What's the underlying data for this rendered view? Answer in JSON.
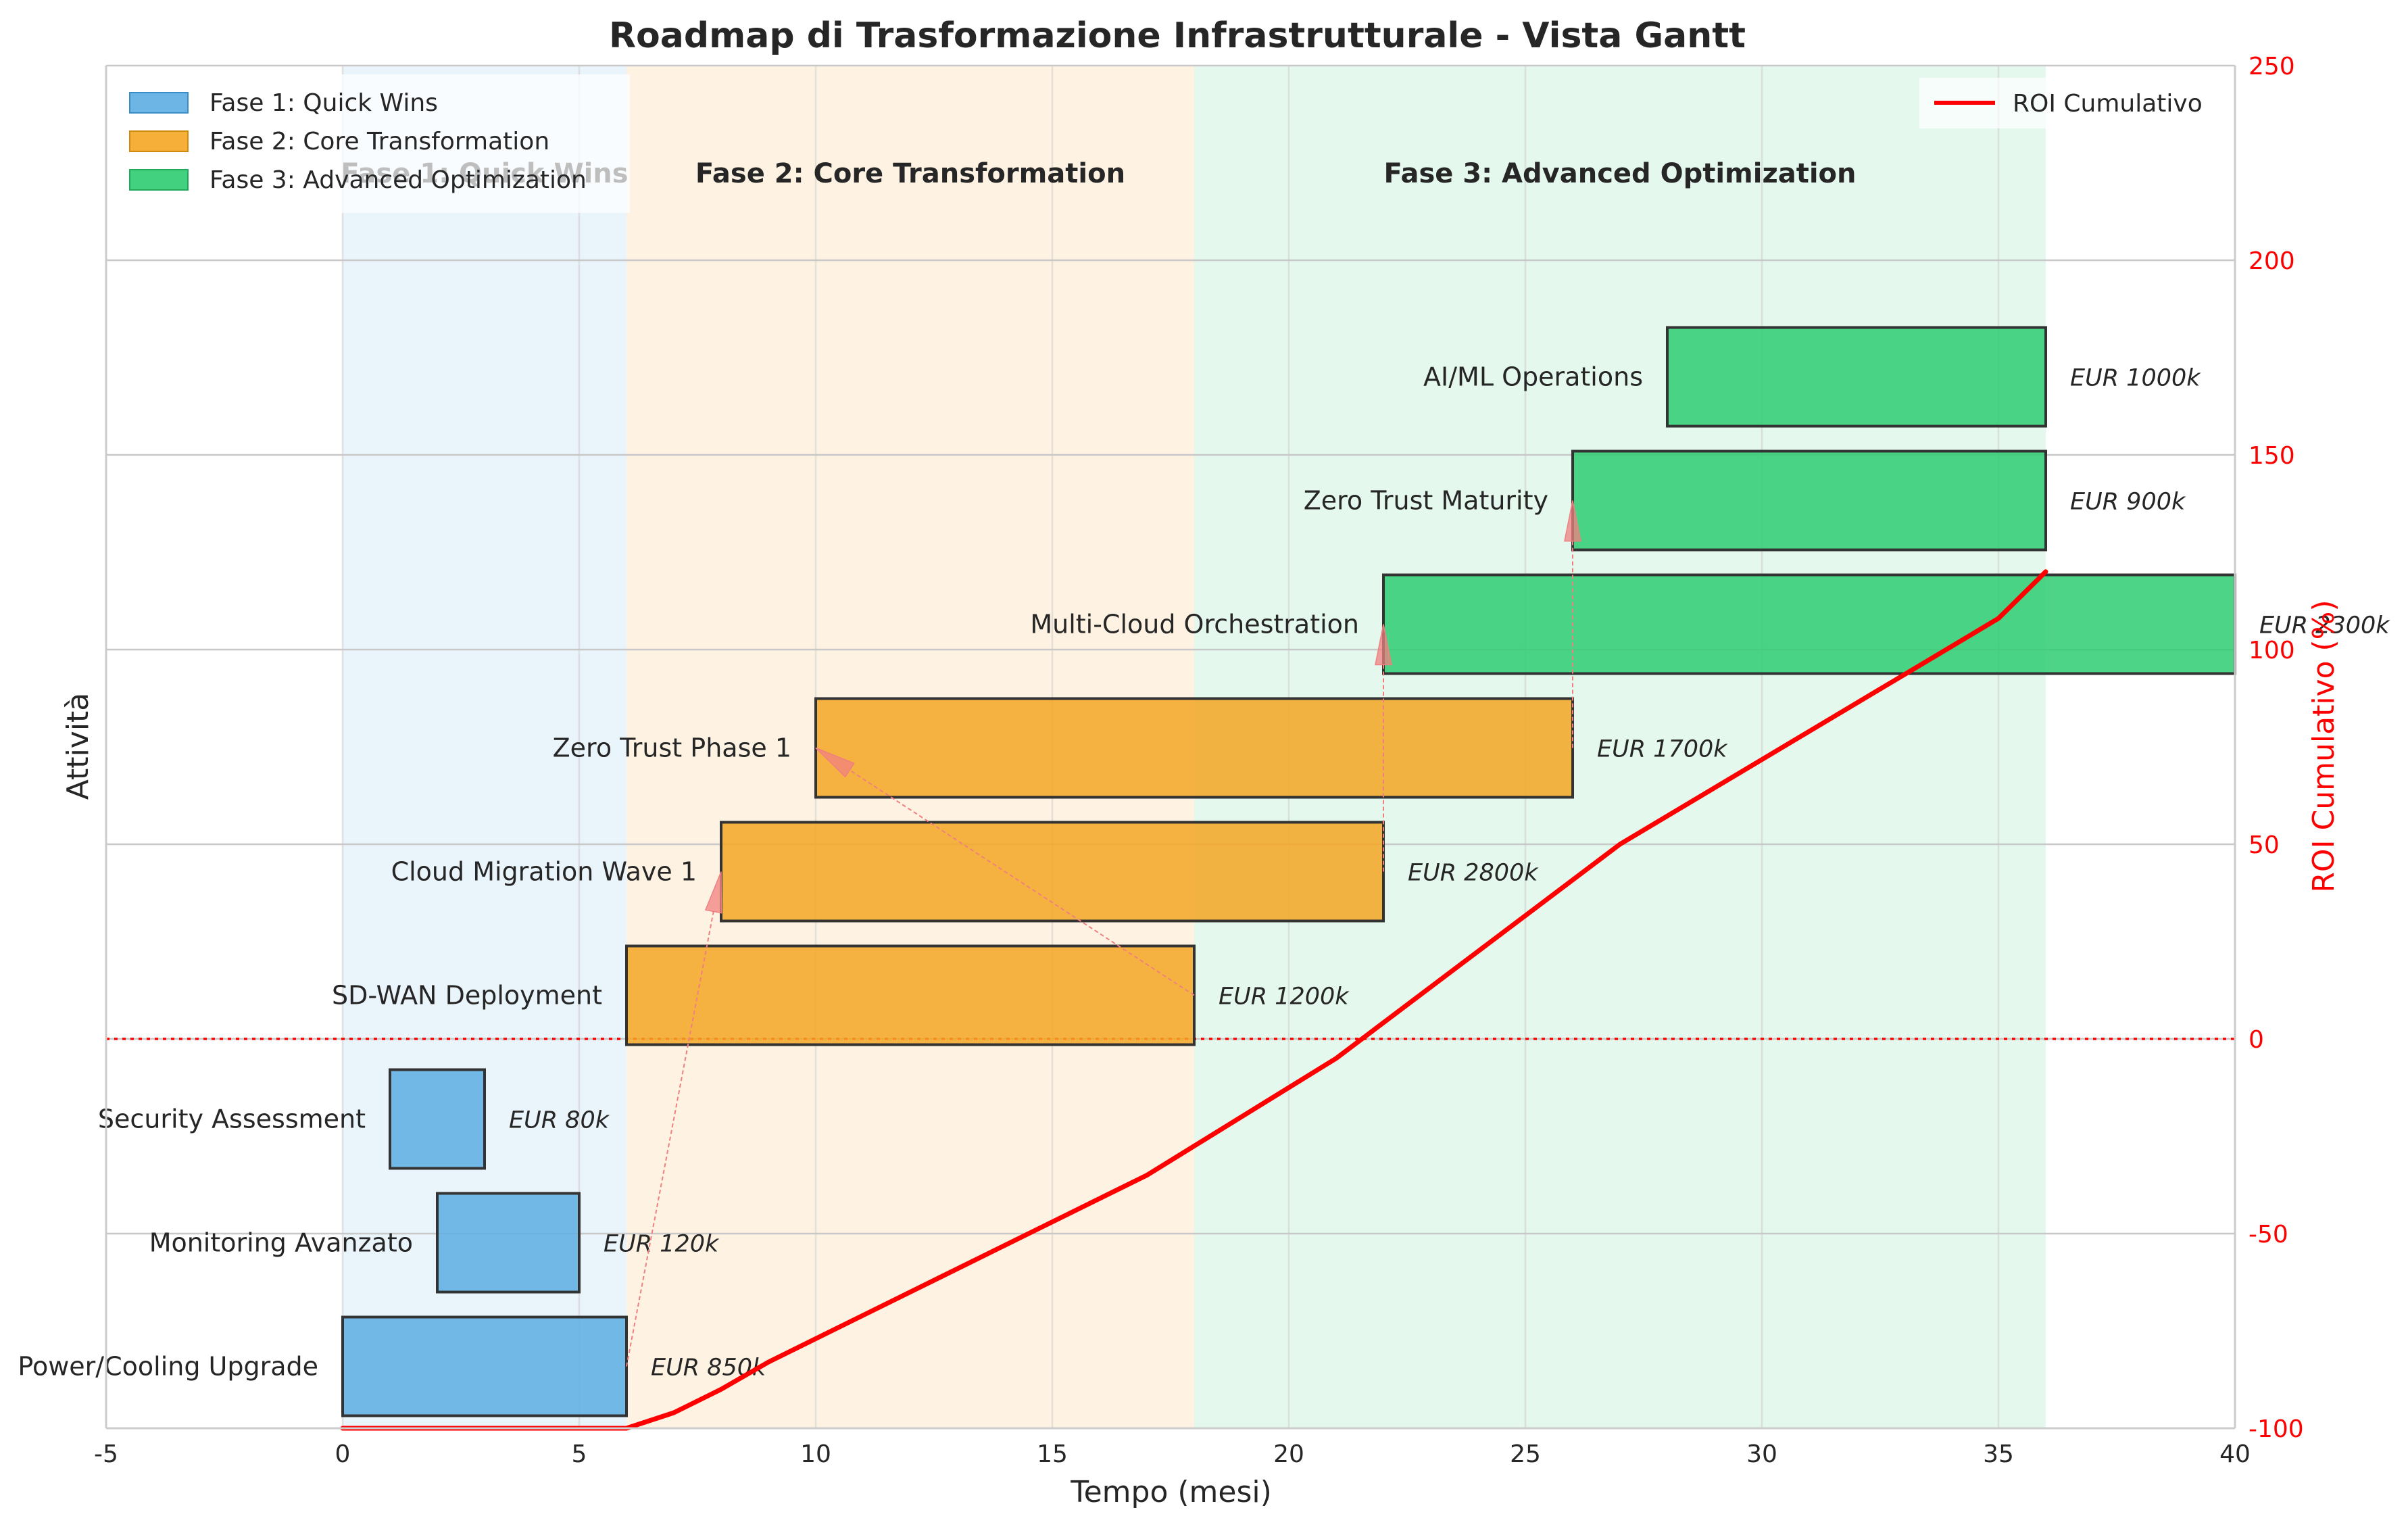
{
  "chart_data": {
    "type": "gantt",
    "title": "Roadmap di Trasformazione Infrastrutturale - Vista Gantt",
    "xlabel": "Tempo (mesi)",
    "ylabel": "Attività",
    "y2label": "ROI Cumulativo (%)",
    "xlim": [
      -5,
      40
    ],
    "xticks": [
      -5,
      0,
      5,
      10,
      15,
      20,
      25,
      30,
      35,
      40
    ],
    "y2lim": [
      -100,
      250
    ],
    "y2ticks": [
      -100,
      -50,
      0,
      50,
      100,
      150,
      200,
      250
    ],
    "grid": true,
    "legend_left_position": "top-left",
    "legend_right_position": "top-right",
    "colors": {
      "phase1": "#5DADE2",
      "phase2": "#F5A623",
      "phase3": "#2ECC71",
      "roi": "#FF0000",
      "dependency": "#F08080",
      "axis_red": "#FF0000"
    },
    "phases": [
      {
        "id": "phase1",
        "label": "Fase 1: Quick Wins",
        "start": 0,
        "end": 6
      },
      {
        "id": "phase2",
        "label": "Fase 2: Core Transformation",
        "start": 6,
        "end": 18
      },
      {
        "id": "phase3",
        "label": "Fase 3: Advanced Optimization",
        "start": 18,
        "end": 36
      }
    ],
    "tasks": [
      {
        "name": "Power/Cooling Upgrade",
        "start": 0,
        "end": 6,
        "phase": "phase1",
        "cost": "EUR 850k"
      },
      {
        "name": "Monitoring Avanzato",
        "start": 2,
        "end": 5,
        "phase": "phase1",
        "cost": "EUR 120k"
      },
      {
        "name": "Security Assessment",
        "start": 1,
        "end": 3,
        "phase": "phase1",
        "cost": "EUR 80k"
      },
      {
        "name": "SD-WAN Deployment",
        "start": 6,
        "end": 18,
        "phase": "phase2",
        "cost": "EUR 1200k"
      },
      {
        "name": "Cloud Migration Wave 1",
        "start": 8,
        "end": 22,
        "phase": "phase2",
        "cost": "EUR 2800k"
      },
      {
        "name": "Zero Trust Phase 1",
        "start": 10,
        "end": 26,
        "phase": "phase2",
        "cost": "EUR 1700k"
      },
      {
        "name": "Multi-Cloud Orchestration",
        "start": 22,
        "end": 40,
        "phase": "phase3",
        "cost": "EUR 2300k"
      },
      {
        "name": "Zero Trust Maturity",
        "start": 26,
        "end": 36,
        "phase": "phase3",
        "cost": "EUR 900k"
      },
      {
        "name": "AI/ML Operations",
        "start": 28,
        "end": 36,
        "phase": "phase3",
        "cost": "EUR 1000k"
      }
    ],
    "dependencies": [
      {
        "from": "Power/Cooling Upgrade",
        "to": "Cloud Migration Wave 1"
      },
      {
        "from": "SD-WAN Deployment",
        "to": "Zero Trust Phase 1"
      },
      {
        "from": "Cloud Migration Wave 1",
        "to": "Multi-Cloud Orchestration"
      },
      {
        "from": "Zero Trust Phase 1",
        "to": "Zero Trust Maturity"
      }
    ],
    "roi_series": {
      "name": "ROI Cumulativo",
      "x": [
        0,
        6,
        7,
        8,
        9,
        10,
        17,
        21,
        27,
        35,
        36
      ],
      "y": [
        -100,
        -100,
        -96,
        -90,
        -83,
        -77,
        -35,
        -5,
        50,
        108,
        120
      ]
    }
  }
}
